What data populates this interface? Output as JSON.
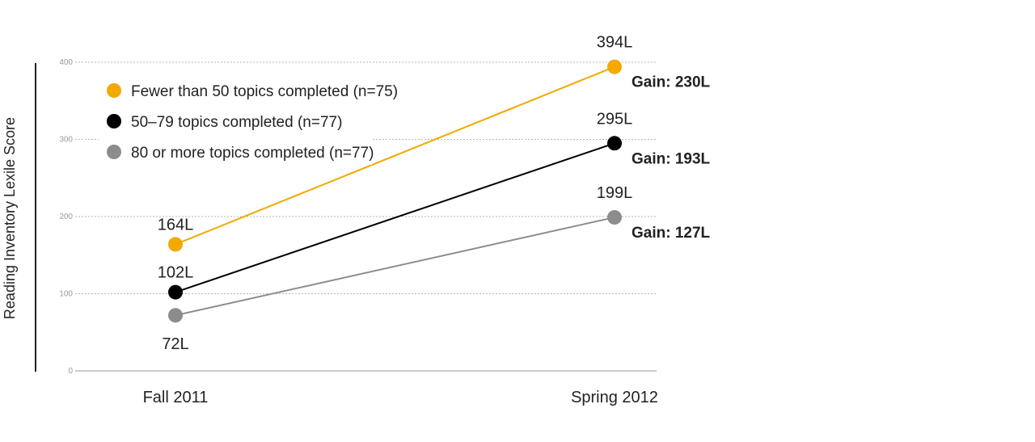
{
  "chart_data": {
    "type": "line",
    "categories": [
      "Fall 2011",
      "Spring 2012"
    ],
    "ylabel": "Reading Inventory Lexile Score",
    "ylim": [
      0,
      400
    ],
    "yticks": [
      0,
      100,
      200,
      300,
      400
    ],
    "grid": true,
    "legend_position": "top-left",
    "series": [
      {
        "name": "Fewer than 50 topics completed (n=75)",
        "color": "#f2a900",
        "values": [
          164,
          394
        ],
        "value_labels": [
          "164L",
          "394L"
        ],
        "gain_label": "Gain: 230L"
      },
      {
        "name": "50–79 topics completed (n=77)",
        "color": "#000000",
        "values": [
          102,
          295
        ],
        "value_labels": [
          "102L",
          "295L"
        ],
        "gain_label": "Gain: 193L"
      },
      {
        "name": "80 or more topics completed (n=77)",
        "color": "#8c8c8c",
        "values": [
          72,
          199
        ],
        "value_labels": [
          "72L",
          "199L"
        ],
        "gain_label": "Gain: 127L"
      }
    ]
  }
}
